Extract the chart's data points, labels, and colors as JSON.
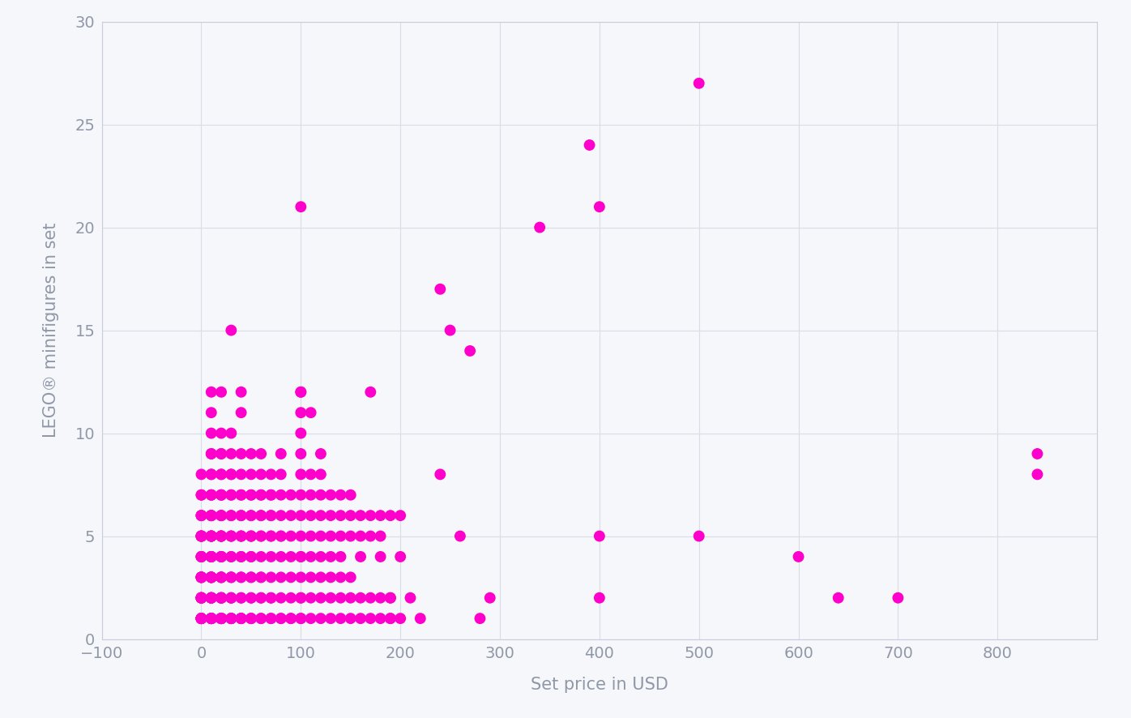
{
  "xlabel": "Set price in USD",
  "ylabel": "LEGO® minifigures in set",
  "xlim": [
    -100,
    900
  ],
  "ylim": [
    0,
    30
  ],
  "xticks": [
    -100,
    0,
    100,
    200,
    300,
    400,
    500,
    600,
    700,
    800
  ],
  "yticks": [
    0,
    5,
    10,
    15,
    20,
    25,
    30
  ],
  "dot_color": "#FF00CC",
  "background_color": "#F5F7FB",
  "grid_color": "#D8DDE8",
  "axis_color": "#C8CDD8",
  "label_color": "#9098A8",
  "tick_color": "#9098A8",
  "dot_size": 100,
  "points": [
    [
      0,
      1
    ],
    [
      0,
      1
    ],
    [
      0,
      1
    ],
    [
      0,
      1
    ],
    [
      0,
      1
    ],
    [
      0,
      1
    ],
    [
      0,
      1
    ],
    [
      0,
      1
    ],
    [
      0,
      1
    ],
    [
      0,
      1
    ],
    [
      0,
      2
    ],
    [
      0,
      2
    ],
    [
      0,
      2
    ],
    [
      0,
      2
    ],
    [
      0,
      2
    ],
    [
      0,
      2
    ],
    [
      0,
      2
    ],
    [
      0,
      2
    ],
    [
      0,
      3
    ],
    [
      0,
      3
    ],
    [
      0,
      3
    ],
    [
      0,
      3
    ],
    [
      0,
      3
    ],
    [
      0,
      3
    ],
    [
      0,
      4
    ],
    [
      0,
      4
    ],
    [
      0,
      4
    ],
    [
      0,
      4
    ],
    [
      0,
      5
    ],
    [
      0,
      5
    ],
    [
      0,
      5
    ],
    [
      0,
      5
    ],
    [
      0,
      5
    ],
    [
      0,
      5
    ],
    [
      0,
      6
    ],
    [
      0,
      6
    ],
    [
      0,
      6
    ],
    [
      0,
      7
    ],
    [
      0,
      7
    ],
    [
      0,
      8
    ],
    [
      10,
      1
    ],
    [
      10,
      1
    ],
    [
      10,
      1
    ],
    [
      10,
      1
    ],
    [
      10,
      1
    ],
    [
      10,
      1
    ],
    [
      10,
      1
    ],
    [
      10,
      1
    ],
    [
      10,
      1
    ],
    [
      10,
      2
    ],
    [
      10,
      2
    ],
    [
      10,
      2
    ],
    [
      10,
      2
    ],
    [
      10,
      2
    ],
    [
      10,
      2
    ],
    [
      10,
      2
    ],
    [
      10,
      3
    ],
    [
      10,
      3
    ],
    [
      10,
      3
    ],
    [
      10,
      3
    ],
    [
      10,
      3
    ],
    [
      10,
      3
    ],
    [
      10,
      3
    ],
    [
      10,
      4
    ],
    [
      10,
      4
    ],
    [
      10,
      4
    ],
    [
      10,
      4
    ],
    [
      10,
      4
    ],
    [
      10,
      5
    ],
    [
      10,
      5
    ],
    [
      10,
      5
    ],
    [
      10,
      5
    ],
    [
      10,
      5
    ],
    [
      10,
      5
    ],
    [
      10,
      6
    ],
    [
      10,
      6
    ],
    [
      10,
      6
    ],
    [
      10,
      6
    ],
    [
      10,
      7
    ],
    [
      10,
      7
    ],
    [
      10,
      7
    ],
    [
      10,
      8
    ],
    [
      10,
      8
    ],
    [
      10,
      9
    ],
    [
      10,
      9
    ],
    [
      10,
      10
    ],
    [
      10,
      11
    ],
    [
      10,
      12
    ],
    [
      20,
      1
    ],
    [
      20,
      1
    ],
    [
      20,
      1
    ],
    [
      20,
      1
    ],
    [
      20,
      1
    ],
    [
      20,
      1
    ],
    [
      20,
      1
    ],
    [
      20,
      1
    ],
    [
      20,
      2
    ],
    [
      20,
      2
    ],
    [
      20,
      2
    ],
    [
      20,
      2
    ],
    [
      20,
      2
    ],
    [
      20,
      2
    ],
    [
      20,
      3
    ],
    [
      20,
      3
    ],
    [
      20,
      3
    ],
    [
      20,
      3
    ],
    [
      20,
      3
    ],
    [
      20,
      4
    ],
    [
      20,
      4
    ],
    [
      20,
      4
    ],
    [
      20,
      4
    ],
    [
      20,
      5
    ],
    [
      20,
      5
    ],
    [
      20,
      5
    ],
    [
      20,
      5
    ],
    [
      20,
      5
    ],
    [
      20,
      6
    ],
    [
      20,
      6
    ],
    [
      20,
      6
    ],
    [
      20,
      7
    ],
    [
      20,
      7
    ],
    [
      20,
      7
    ],
    [
      20,
      8
    ],
    [
      20,
      8
    ],
    [
      20,
      9
    ],
    [
      20,
      9
    ],
    [
      20,
      10
    ],
    [
      20,
      12
    ],
    [
      30,
      1
    ],
    [
      30,
      1
    ],
    [
      30,
      1
    ],
    [
      30,
      1
    ],
    [
      30,
      1
    ],
    [
      30,
      2
    ],
    [
      30,
      2
    ],
    [
      30,
      2
    ],
    [
      30,
      3
    ],
    [
      30,
      3
    ],
    [
      30,
      3
    ],
    [
      30,
      4
    ],
    [
      30,
      4
    ],
    [
      30,
      5
    ],
    [
      30,
      5
    ],
    [
      30,
      5
    ],
    [
      30,
      6
    ],
    [
      30,
      6
    ],
    [
      30,
      7
    ],
    [
      30,
      7
    ],
    [
      30,
      8
    ],
    [
      30,
      8
    ],
    [
      30,
      9
    ],
    [
      30,
      10
    ],
    [
      30,
      15
    ],
    [
      40,
      1
    ],
    [
      40,
      1
    ],
    [
      40,
      1
    ],
    [
      40,
      1
    ],
    [
      40,
      2
    ],
    [
      40,
      2
    ],
    [
      40,
      3
    ],
    [
      40,
      3
    ],
    [
      40,
      4
    ],
    [
      40,
      4
    ],
    [
      40,
      5
    ],
    [
      40,
      5
    ],
    [
      40,
      5
    ],
    [
      40,
      6
    ],
    [
      40,
      6
    ],
    [
      40,
      7
    ],
    [
      40,
      7
    ],
    [
      40,
      8
    ],
    [
      40,
      9
    ],
    [
      40,
      11
    ],
    [
      40,
      12
    ],
    [
      50,
      1
    ],
    [
      50,
      1
    ],
    [
      50,
      1
    ],
    [
      50,
      2
    ],
    [
      50,
      2
    ],
    [
      50,
      3
    ],
    [
      50,
      3
    ],
    [
      50,
      4
    ],
    [
      50,
      4
    ],
    [
      50,
      5
    ],
    [
      50,
      5
    ],
    [
      50,
      5
    ],
    [
      50,
      6
    ],
    [
      50,
      6
    ],
    [
      50,
      7
    ],
    [
      50,
      7
    ],
    [
      50,
      8
    ],
    [
      50,
      9
    ],
    [
      60,
      1
    ],
    [
      60,
      1
    ],
    [
      60,
      2
    ],
    [
      60,
      2
    ],
    [
      60,
      3
    ],
    [
      60,
      3
    ],
    [
      60,
      4
    ],
    [
      60,
      5
    ],
    [
      60,
      5
    ],
    [
      60,
      6
    ],
    [
      60,
      6
    ],
    [
      60,
      7
    ],
    [
      60,
      7
    ],
    [
      60,
      8
    ],
    [
      60,
      9
    ],
    [
      70,
      1
    ],
    [
      70,
      1
    ],
    [
      70,
      2
    ],
    [
      70,
      2
    ],
    [
      70,
      3
    ],
    [
      70,
      4
    ],
    [
      70,
      5
    ],
    [
      70,
      5
    ],
    [
      70,
      6
    ],
    [
      70,
      6
    ],
    [
      70,
      7
    ],
    [
      70,
      7
    ],
    [
      70,
      8
    ],
    [
      80,
      1
    ],
    [
      80,
      1
    ],
    [
      80,
      2
    ],
    [
      80,
      3
    ],
    [
      80,
      4
    ],
    [
      80,
      5
    ],
    [
      80,
      5
    ],
    [
      80,
      6
    ],
    [
      80,
      7
    ],
    [
      80,
      8
    ],
    [
      80,
      9
    ],
    [
      90,
      1
    ],
    [
      90,
      1
    ],
    [
      90,
      2
    ],
    [
      90,
      3
    ],
    [
      90,
      4
    ],
    [
      90,
      5
    ],
    [
      90,
      6
    ],
    [
      90,
      7
    ],
    [
      100,
      1
    ],
    [
      100,
      1
    ],
    [
      100,
      2
    ],
    [
      100,
      2
    ],
    [
      100,
      3
    ],
    [
      100,
      4
    ],
    [
      100,
      4
    ],
    [
      100,
      5
    ],
    [
      100,
      6
    ],
    [
      100,
      7
    ],
    [
      100,
      8
    ],
    [
      100,
      9
    ],
    [
      100,
      10
    ],
    [
      100,
      11
    ],
    [
      100,
      12
    ],
    [
      100,
      12
    ],
    [
      100,
      21
    ],
    [
      110,
      1
    ],
    [
      110,
      2
    ],
    [
      110,
      3
    ],
    [
      110,
      4
    ],
    [
      110,
      5
    ],
    [
      110,
      6
    ],
    [
      110,
      7
    ],
    [
      110,
      8
    ],
    [
      110,
      11
    ],
    [
      120,
      1
    ],
    [
      120,
      2
    ],
    [
      120,
      3
    ],
    [
      120,
      4
    ],
    [
      120,
      5
    ],
    [
      120,
      6
    ],
    [
      120,
      7
    ],
    [
      120,
      8
    ],
    [
      120,
      9
    ],
    [
      130,
      1
    ],
    [
      130,
      2
    ],
    [
      130,
      3
    ],
    [
      130,
      4
    ],
    [
      130,
      5
    ],
    [
      130,
      6
    ],
    [
      130,
      7
    ],
    [
      140,
      1
    ],
    [
      140,
      2
    ],
    [
      140,
      3
    ],
    [
      140,
      4
    ],
    [
      140,
      5
    ],
    [
      140,
      6
    ],
    [
      140,
      7
    ],
    [
      150,
      1
    ],
    [
      150,
      2
    ],
    [
      150,
      3
    ],
    [
      150,
      5
    ],
    [
      150,
      6
    ],
    [
      150,
      7
    ],
    [
      160,
      1
    ],
    [
      160,
      2
    ],
    [
      160,
      4
    ],
    [
      160,
      5
    ],
    [
      160,
      6
    ],
    [
      170,
      1
    ],
    [
      170,
      2
    ],
    [
      170,
      5
    ],
    [
      170,
      6
    ],
    [
      170,
      12
    ],
    [
      180,
      1
    ],
    [
      180,
      2
    ],
    [
      180,
      4
    ],
    [
      180,
      5
    ],
    [
      180,
      6
    ],
    [
      190,
      1
    ],
    [
      190,
      1
    ],
    [
      190,
      2
    ],
    [
      190,
      2
    ],
    [
      190,
      6
    ],
    [
      200,
      1
    ],
    [
      200,
      4
    ],
    [
      200,
      6
    ],
    [
      210,
      2
    ],
    [
      220,
      1
    ],
    [
      240,
      17
    ],
    [
      240,
      8
    ],
    [
      250,
      15
    ],
    [
      260,
      5
    ],
    [
      270,
      14
    ],
    [
      280,
      1
    ],
    [
      290,
      2
    ],
    [
      340,
      20
    ],
    [
      390,
      24
    ],
    [
      400,
      5
    ],
    [
      400,
      2
    ],
    [
      400,
      21
    ],
    [
      500,
      27
    ],
    [
      500,
      5
    ],
    [
      600,
      4
    ],
    [
      640,
      2
    ],
    [
      700,
      2
    ],
    [
      840,
      9
    ],
    [
      840,
      8
    ]
  ]
}
